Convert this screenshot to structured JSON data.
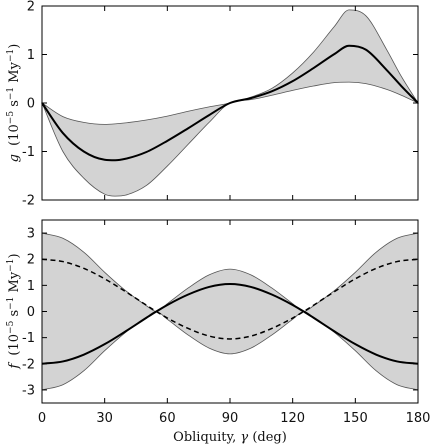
{
  "chart_data": [
    {
      "type": "area",
      "panel": "top",
      "ylabel": {
        "symbol": "g",
        "units_prefix": "(10",
        "units_exp1": "−5",
        "units_mid": " s",
        "units_exp2": "−1",
        "units_mid2": " My",
        "units_exp3": "−1",
        "units_suffix": ")"
      },
      "xlim": [
        0,
        180
      ],
      "ylim": [
        -2,
        2
      ],
      "yticks": [
        2,
        1,
        0,
        -1,
        -2
      ],
      "ytick_labels": [
        "2",
        "1",
        "0",
        "-1",
        "-2"
      ],
      "grid": false,
      "series": [
        {
          "role": "band",
          "x": [
            0,
            10,
            20,
            30,
            35,
            40,
            50,
            60,
            70,
            80,
            90,
            100,
            110,
            120,
            130,
            140,
            147,
            155,
            165,
            172,
            180
          ],
          "upper": [
            0,
            -0.28,
            -0.4,
            -0.44,
            -0.43,
            -0.41,
            -0.35,
            -0.27,
            -0.17,
            -0.08,
            0,
            0.12,
            0.3,
            0.62,
            1.05,
            1.58,
            1.92,
            1.8,
            1.1,
            0.55,
            0
          ],
          "lower": [
            0,
            -1.0,
            -1.55,
            -1.88,
            -1.92,
            -1.9,
            -1.7,
            -1.3,
            -0.85,
            -0.4,
            0,
            0.07,
            0.16,
            0.26,
            0.35,
            0.42,
            0.43,
            0.4,
            0.28,
            0.16,
            0
          ]
        },
        {
          "role": "mean",
          "x": [
            0,
            10,
            20,
            30,
            35,
            40,
            50,
            60,
            70,
            80,
            90,
            100,
            110,
            120,
            130,
            140,
            147,
            155,
            165,
            172,
            180
          ],
          "y": [
            0,
            -0.62,
            -1.0,
            -1.17,
            -1.18,
            -1.15,
            -1.01,
            -0.78,
            -0.52,
            -0.25,
            0,
            0.1,
            0.24,
            0.45,
            0.72,
            1.01,
            1.18,
            1.1,
            0.68,
            0.35,
            0
          ]
        }
      ]
    },
    {
      "type": "area",
      "panel": "bottom",
      "xlabel": {
        "word": "Obliquity, ",
        "symbol": "γ",
        "units": " (deg)"
      },
      "ylabel": {
        "symbol": "f",
        "units_prefix": "(10",
        "units_exp1": "−5",
        "units_mid": " s",
        "units_exp2": "−1",
        "units_mid2": " My",
        "units_exp3": "−1",
        "units_suffix": ")"
      },
      "xlim": [
        0,
        180
      ],
      "ylim": [
        -3.5,
        3.5
      ],
      "xticks": [
        0,
        30,
        60,
        90,
        120,
        150,
        180
      ],
      "xtick_labels": [
        "0",
        "30",
        "60",
        "90",
        "120",
        "150",
        "180"
      ],
      "yticks": [
        3,
        2,
        1,
        0,
        -1,
        -2,
        -3
      ],
      "ytick_labels": [
        "3",
        "2",
        "1",
        "0",
        "-1",
        "-2",
        "-3"
      ],
      "grid": false,
      "series": [
        {
          "role": "band",
          "x": [
            0,
            10,
            20,
            30,
            40,
            50,
            54.7,
            60,
            70,
            80,
            90,
            100,
            110,
            120,
            125.3,
            130,
            140,
            150,
            160,
            170,
            180
          ],
          "upper": [
            3.0,
            2.8,
            2.27,
            1.5,
            0.8,
            0.22,
            0,
            0.3,
            0.9,
            1.4,
            1.62,
            1.4,
            0.9,
            0.3,
            0,
            0.22,
            0.8,
            1.5,
            2.27,
            2.8,
            3.0
          ],
          "lower": [
            -3.0,
            -2.8,
            -2.27,
            -1.5,
            -0.8,
            -0.22,
            0,
            -0.3,
            -0.9,
            -1.4,
            -1.62,
            -1.4,
            -0.9,
            -0.3,
            0,
            -0.22,
            -0.8,
            -1.5,
            -2.27,
            -2.8,
            -3.0
          ]
        },
        {
          "role": "mean",
          "x": [
            0,
            10,
            20,
            30,
            40,
            50,
            54.7,
            60,
            70,
            80,
            90,
            100,
            110,
            120,
            125.3,
            130,
            140,
            150,
            160,
            170,
            180
          ],
          "y": [
            -2.0,
            -1.91,
            -1.65,
            -1.25,
            -0.76,
            -0.24,
            0,
            0.25,
            0.65,
            0.94,
            1.05,
            0.94,
            0.65,
            0.25,
            0,
            -0.24,
            -0.76,
            -1.25,
            -1.65,
            -1.91,
            -2.0
          ]
        },
        {
          "role": "dashed",
          "x": [
            0,
            10,
            20,
            30,
            40,
            50,
            54.7,
            60,
            70,
            80,
            90,
            100,
            110,
            120,
            125.3,
            130,
            140,
            150,
            160,
            170,
            180
          ],
          "y": [
            2.0,
            1.91,
            1.65,
            1.25,
            0.76,
            0.24,
            0,
            -0.25,
            -0.65,
            -0.94,
            -1.05,
            -0.94,
            -0.65,
            -0.25,
            0,
            0.24,
            0.76,
            1.25,
            1.65,
            1.91,
            2.0
          ]
        }
      ]
    }
  ]
}
